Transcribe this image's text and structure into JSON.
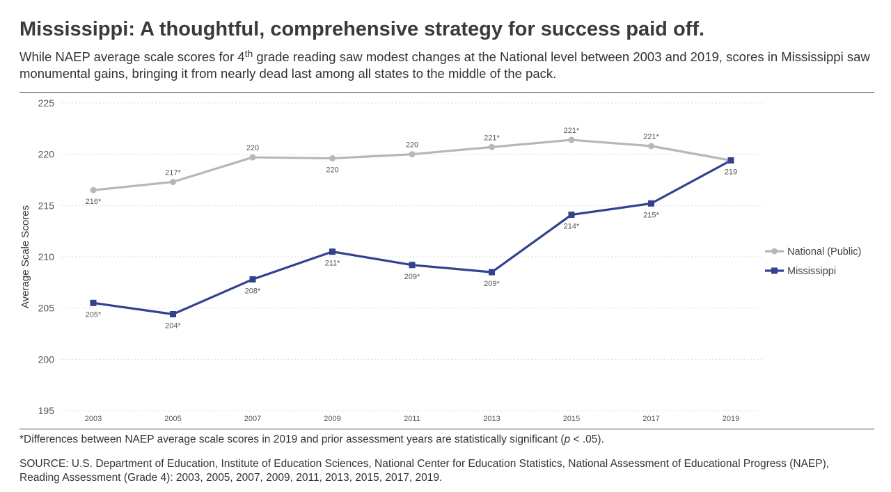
{
  "header": {
    "title": "Mississippi: A thoughtful, comprehensive strategy for success paid off.",
    "subtitle_part1": "While NAEP average scale scores for 4",
    "subtitle_sup": "th",
    "subtitle_part2": " grade reading saw modest changes at the National level between 2003 and 2019, scores in Mississippi saw monumental gains, bringing it from nearly dead last among all states to the middle of the pack."
  },
  "footer": {
    "note_part1": "*Differences between NAEP average scale scores in 2019 and prior assessment years are statistically significant (",
    "note_p": "p",
    "note_part2": " < .05).",
    "source": "SOURCE: U.S. Department of Education, Institute of Education Sciences, National Center for Education Statistics, National Assessment of Educational Progress (NAEP), Reading Assessment (Grade 4): 2003, 2005, 2007, 2009, 2011, 2013, 2015, 2017, 2019."
  },
  "colors": {
    "national": "#b7b7b7",
    "mississippi": "#34418f",
    "grid": "#d9d9d9",
    "axis_text": "#555555"
  },
  "chart_data": {
    "type": "line",
    "title": "",
    "xlabel": "",
    "ylabel": "Average Scale Scores",
    "ylim": [
      195,
      225
    ],
    "yticks": [
      195,
      200,
      205,
      210,
      215,
      220,
      225
    ],
    "categories": [
      "2003",
      "2005",
      "2007",
      "2009",
      "2011",
      "2013",
      "2015",
      "2017",
      "2019"
    ],
    "grid": true,
    "legend_position": "right",
    "series": [
      {
        "name": "National (Public)",
        "marker": "circle",
        "values": [
          216.5,
          217.3,
          219.7,
          219.6,
          220.0,
          220.7,
          221.4,
          220.8,
          219.4
        ],
        "labels": [
          "216*",
          "217*",
          "220",
          "220",
          "220",
          "221*",
          "221*",
          "221*",
          "219"
        ],
        "label_positions": [
          "below",
          "above",
          "above",
          "below",
          "above",
          "above",
          "above",
          "above",
          "below"
        ]
      },
      {
        "name": "Mississippi",
        "marker": "square",
        "values": [
          205.5,
          204.4,
          207.8,
          210.5,
          209.2,
          208.5,
          214.1,
          215.2,
          219.4
        ],
        "labels": [
          "205*",
          "204*",
          "208*",
          "211*",
          "209*",
          "209*",
          "214*",
          "215*",
          ""
        ],
        "label_positions": [
          "below",
          "below",
          "below",
          "below",
          "below",
          "below",
          "below",
          "below",
          "below"
        ]
      }
    ]
  }
}
